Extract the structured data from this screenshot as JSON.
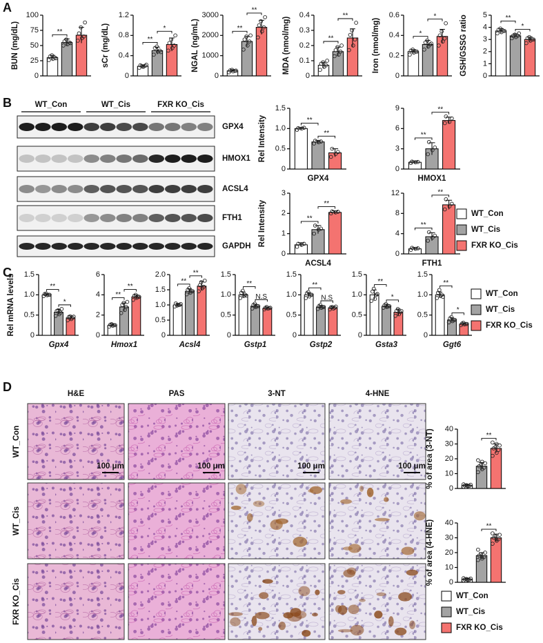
{
  "panel_labels": [
    "A",
    "B",
    "C",
    "D"
  ],
  "groups": [
    {
      "name": "WT_Con",
      "color": "#ffffff"
    },
    {
      "name": "WT_Cis",
      "color": "#a3a3a3"
    },
    {
      "name": "FXR KO_Cis",
      "color": "#f47370"
    }
  ],
  "blot": {
    "proteins": [
      "GPX4",
      "HMOX1",
      "ACSL4",
      "FTH1",
      "GAPDH"
    ]
  },
  "histology": {
    "columns": [
      "H&E",
      "PAS",
      "3-NT",
      "4-HNE"
    ],
    "scale_bar": "100 μm"
  },
  "chart_data": [
    {
      "type": "bar",
      "ylabel": "BUN (mg/dL)",
      "values": [
        30,
        55,
        67
      ],
      "errors": [
        4,
        6,
        13
      ],
      "points": [
        [
          26,
          28,
          30,
          32,
          34,
          29
        ],
        [
          50,
          52,
          55,
          57,
          60,
          54
        ],
        [
          58,
          62,
          65,
          70,
          80,
          88
        ]
      ],
      "ylim": [
        0,
        100
      ],
      "yticks": [
        0,
        25,
        50,
        75,
        100
      ],
      "significance": [
        "**",
        null
      ]
    },
    {
      "type": "bar",
      "ylabel": "sCr (mg/dL)",
      "values": [
        0.19,
        0.5,
        0.62
      ],
      "errors": [
        0.03,
        0.07,
        0.13
      ],
      "points": [
        [
          0.16,
          0.18,
          0.2,
          0.21,
          0.19,
          0.22
        ],
        [
          0.42,
          0.48,
          0.5,
          0.55,
          0.58,
          0.47
        ],
        [
          0.5,
          0.55,
          0.6,
          0.65,
          0.72,
          0.8
        ]
      ],
      "ylim": [
        0,
        1.2
      ],
      "yticks": [
        0,
        0.4,
        0.8,
        1.2
      ],
      "significance": [
        "**",
        "*"
      ]
    },
    {
      "type": "bar",
      "ylabel": "NGAL (ng/mL)",
      "values": [
        250,
        1700,
        2400
      ],
      "errors": [
        60,
        250,
        350
      ],
      "points": [
        [
          180,
          220,
          250,
          270,
          300,
          260
        ],
        [
          1300,
          1500,
          1700,
          1800,
          1950,
          2000
        ],
        [
          1900,
          2200,
          2400,
          2500,
          2700,
          2900
        ]
      ],
      "ylim": [
        0,
        3000
      ],
      "yticks": [
        0,
        1000,
        2000,
        3000
      ],
      "significance": [
        "**",
        "**"
      ]
    },
    {
      "type": "bar",
      "ylabel": "MDA (nmol/mg)",
      "values": [
        0.07,
        0.16,
        0.25
      ],
      "errors": [
        0.02,
        0.03,
        0.06
      ],
      "points": [
        [
          0.04,
          0.06,
          0.07,
          0.08,
          0.09,
          0.1
        ],
        [
          0.13,
          0.14,
          0.16,
          0.17,
          0.19,
          0.2
        ],
        [
          0.17,
          0.2,
          0.24,
          0.27,
          0.3,
          0.35
        ]
      ],
      "ylim": [
        0,
        0.4
      ],
      "yticks": [
        0,
        0.1,
        0.2,
        0.3,
        0.4
      ],
      "significance": [
        "**",
        "**"
      ]
    },
    {
      "type": "bar",
      "ylabel": "Iron (nmol/mg)",
      "values": [
        0.24,
        0.31,
        0.39
      ],
      "errors": [
        0.02,
        0.04,
        0.07
      ],
      "points": [
        [
          0.21,
          0.23,
          0.24,
          0.25,
          0.26,
          0.24
        ],
        [
          0.26,
          0.29,
          0.31,
          0.33,
          0.35,
          0.32
        ],
        [
          0.3,
          0.34,
          0.37,
          0.4,
          0.44,
          0.52
        ]
      ],
      "ylim": [
        0,
        0.6
      ],
      "yticks": [
        0,
        0.2,
        0.4,
        0.6
      ],
      "significance": [
        "*",
        "*"
      ]
    },
    {
      "type": "bar",
      "ylabel": "GSH/GSSG ratio",
      "values": [
        3.7,
        3.3,
        3.0
      ],
      "errors": [
        0.2,
        0.15,
        0.2
      ],
      "points": [
        [
          3.5,
          3.6,
          3.7,
          3.8,
          3.9,
          3.7
        ],
        [
          3.1,
          3.2,
          3.3,
          3.3,
          3.4,
          3.5
        ],
        [
          2.7,
          2.9,
          3.0,
          3.1,
          3.2,
          3.0
        ]
      ],
      "ylim": [
        0,
        5
      ],
      "yticks": [
        0,
        1,
        2,
        3,
        4,
        5
      ],
      "significance": [
        "**",
        "*"
      ]
    },
    {
      "type": "bar",
      "ylabel": "Rel Intensity",
      "xlabel": "GPX4",
      "values": [
        1.0,
        0.67,
        0.4
      ],
      "errors": [
        0.03,
        0.04,
        0.1
      ],
      "points": [
        [
          0.97,
          1.0,
          1.02,
          1.01
        ],
        [
          0.63,
          0.66,
          0.68,
          0.7
        ],
        [
          0.3,
          0.37,
          0.42,
          0.5
        ]
      ],
      "ylim": [
        0,
        1.5
      ],
      "yticks": [
        0,
        0.5,
        {
          "value": 1,
          "label": "1.0"
        },
        1.5
      ],
      "significance": [
        "**",
        "**"
      ]
    },
    {
      "type": "bar",
      "xlabel": "HMOX1",
      "values": [
        1,
        3,
        7.2
      ],
      "errors": [
        0.2,
        0.9,
        0.5
      ],
      "points": [
        [
          0.9,
          1,
          1.05,
          1.1
        ],
        [
          2.2,
          2.8,
          3.2,
          4.0
        ],
        [
          6.8,
          7.0,
          7.5,
          7.8
        ]
      ],
      "ylim": [
        0,
        9
      ],
      "yticks": [
        0,
        3,
        6,
        9
      ],
      "significance": [
        "**",
        "**"
      ]
    },
    {
      "type": "bar",
      "ylabel": "Rel Intensity",
      "xlabel": "ACSL4",
      "values": [
        0.45,
        1.2,
        2.05
      ],
      "errors": [
        0.1,
        0.2,
        0.08
      ],
      "points": [
        [
          0.35,
          0.45,
          0.5,
          0.5
        ],
        [
          1.0,
          1.2,
          1.25,
          1.4
        ],
        [
          2.0,
          2.05,
          2.08,
          2.1
        ]
      ],
      "ylim": [
        0,
        3
      ],
      "yticks": [
        0,
        1,
        2,
        3
      ],
      "significance": [
        "**",
        "**"
      ]
    },
    {
      "type": "bar",
      "xlabel": "FTH1",
      "values": [
        1,
        3.4,
        9.7
      ],
      "errors": [
        0.3,
        0.8,
        0.9
      ],
      "points": [
        [
          0.8,
          1,
          1.1,
          1.2
        ],
        [
          2.6,
          3.2,
          3.6,
          4.3
        ],
        [
          8.8,
          9.4,
          9.9,
          10.8
        ]
      ],
      "ylim": [
        0,
        12
      ],
      "yticks": [
        0,
        4,
        8,
        12
      ],
      "significance": [
        "**",
        "**"
      ]
    },
    {
      "type": "bar",
      "ylabel": "Rel mRNA levels",
      "xlabel": "Gpx4",
      "values": [
        1.0,
        0.57,
        0.43
      ],
      "errors": [
        0.03,
        0.07,
        0.05
      ],
      "points": [
        [
          0.97,
          0.99,
          1.0,
          1.02,
          1.03,
          1.0
        ],
        [
          0.48,
          0.52,
          0.56,
          0.6,
          0.62,
          0.65
        ],
        [
          0.37,
          0.4,
          0.43,
          0.45,
          0.47,
          0.46
        ]
      ],
      "ylim": [
        0,
        1.5
      ],
      "yticks": [
        0,
        0.5,
        {
          "value": 1,
          "label": "1.0"
        },
        1.5
      ],
      "significance": [
        "**",
        "*"
      ]
    },
    {
      "type": "bar",
      "xlabel": "Hmox1",
      "values": [
        1,
        2.8,
        3.8
      ],
      "errors": [
        0.15,
        0.4,
        0.2
      ],
      "points": [
        [
          0.85,
          0.95,
          1.0,
          1.05,
          1.1,
          1.0
        ],
        [
          2.2,
          2.5,
          2.8,
          3.0,
          3.2,
          3.3
        ],
        [
          3.5,
          3.7,
          3.8,
          3.9,
          4.0,
          3.8
        ]
      ],
      "ylim": [
        0,
        6
      ],
      "yticks": [
        0,
        2,
        4,
        6
      ],
      "significance": [
        "**",
        "**"
      ]
    },
    {
      "type": "bar",
      "xlabel": "Acsl4",
      "values": [
        1,
        1.45,
        1.62
      ],
      "errors": [
        0.05,
        0.08,
        0.15
      ],
      "points": [
        [
          0.95,
          1.0,
          1.0,
          1.05,
          0.98,
          1.03
        ],
        [
          1.35,
          1.4,
          1.45,
          1.5,
          1.55,
          1.45
        ],
        [
          1.45,
          1.55,
          1.6,
          1.65,
          1.75,
          1.8
        ]
      ],
      "ylim": [
        0,
        2
      ],
      "yticks": [
        0,
        0.5,
        {
          "value": 1,
          "label": "1.0"
        },
        1.5,
        {
          "value": 2,
          "label": "2.0"
        }
      ],
      "significance": [
        "**",
        "**"
      ]
    },
    {
      "type": "bar",
      "xlabel": "Gstp1",
      "values": [
        1,
        0.72,
        0.67
      ],
      "errors": [
        0.07,
        0.05,
        0.03
      ],
      "points": [
        [
          0.92,
          0.97,
          1.0,
          1.05,
          1.1,
          0.98
        ],
        [
          0.66,
          0.7,
          0.72,
          0.75,
          0.78,
          0.72
        ],
        [
          0.64,
          0.66,
          0.67,
          0.68,
          0.7,
          0.68
        ]
      ],
      "ylim": [
        0,
        1.5
      ],
      "yticks": [
        0,
        0.5,
        {
          "value": 1,
          "label": "1.0"
        },
        1.5
      ],
      "significance": [
        "**",
        "N.S"
      ]
    },
    {
      "type": "bar",
      "xlabel": "Gstp2",
      "values": [
        1,
        0.7,
        0.68
      ],
      "errors": [
        0.05,
        0.04,
        0.03
      ],
      "points": [
        [
          0.92,
          0.96,
          1.0,
          1.04,
          1.07,
          1.0
        ],
        [
          0.65,
          0.68,
          0.7,
          0.72,
          0.75,
          0.7
        ],
        [
          0.64,
          0.66,
          0.68,
          0.69,
          0.7,
          0.71
        ]
      ],
      "ylim": [
        0,
        1.5
      ],
      "yticks": [
        0,
        0.5,
        {
          "value": 1,
          "label": "1.0"
        },
        1.5
      ],
      "significance": [
        "**",
        "N.S"
      ]
    },
    {
      "type": "bar",
      "xlabel": "Gsta3",
      "values": [
        1,
        0.72,
        0.57
      ],
      "errors": [
        0.12,
        0.05,
        0.08
      ],
      "points": [
        [
          0.85,
          0.9,
          1.0,
          1.08,
          1.15,
          1.02
        ],
        [
          0.68,
          0.7,
          0.72,
          0.74,
          0.77,
          0.72
        ],
        [
          0.48,
          0.52,
          0.57,
          0.6,
          0.65,
          0.6
        ]
      ],
      "ylim": [
        0,
        1.5
      ],
      "yticks": [
        0,
        0.5,
        {
          "value": 1,
          "label": "1.0"
        },
        1.5
      ],
      "significance": [
        "**",
        "*"
      ]
    },
    {
      "type": "bar",
      "xlabel": "Ggt6",
      "values": [
        1,
        0.38,
        0.28
      ],
      "errors": [
        0.07,
        0.05,
        0.03
      ],
      "points": [
        [
          0.92,
          0.97,
          1.0,
          1.05,
          1.12,
          0.95
        ],
        [
          0.32,
          0.35,
          0.38,
          0.42,
          0.45,
          0.38
        ],
        [
          0.25,
          0.27,
          0.28,
          0.29,
          0.31,
          0.28
        ]
      ],
      "ylim": [
        0,
        1.5
      ],
      "yticks": [
        0,
        0.5,
        {
          "value": 1,
          "label": "1.0"
        },
        1.5
      ],
      "significance": [
        "**",
        "*"
      ]
    },
    {
      "type": "bar",
      "ylabel": "% of area (3-NT)",
      "values": [
        2,
        15,
        27
      ],
      "errors": [
        0.5,
        2.5,
        3
      ],
      "points": [
        [
          1.2,
          1.5,
          1.8,
          2,
          2.2,
          2.5,
          2.8,
          1.9
        ],
        [
          11,
          13,
          14,
          15,
          16,
          17,
          19,
          18
        ],
        [
          22,
          24,
          26,
          27,
          28,
          29,
          31,
          30
        ]
      ],
      "ylim": [
        0,
        40
      ],
      "yticks": [
        0,
        10,
        20,
        30,
        40
      ],
      "significance": [
        null,
        "**"
      ]
    },
    {
      "type": "bar",
      "ylabel": "% of area (4-HNE)",
      "values": [
        2,
        18,
        30
      ],
      "errors": [
        0.5,
        2,
        2.5
      ],
      "points": [
        [
          1.2,
          1.5,
          1.8,
          2,
          2.2,
          2.5,
          2.8,
          1.9
        ],
        [
          15,
          16,
          17,
          18,
          19,
          20,
          22,
          17
        ],
        [
          26,
          28,
          29,
          30,
          31,
          32,
          33,
          29
        ]
      ],
      "ylim": [
        0,
        40
      ],
      "yticks": [
        0,
        10,
        20,
        30,
        40
      ],
      "significance": [
        null,
        "**"
      ]
    }
  ]
}
